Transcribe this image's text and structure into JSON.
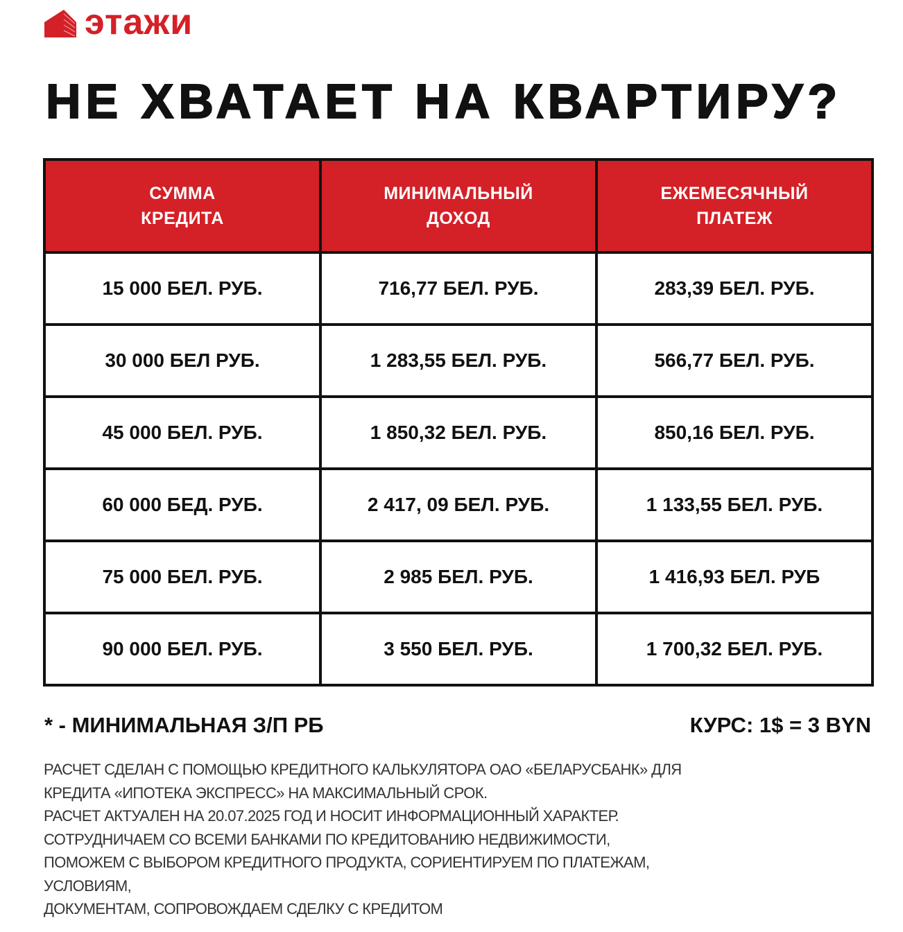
{
  "brand": {
    "name": "этажи",
    "color": "#d42027"
  },
  "title": "НЕ ХВАТАЕТ НА КВАРТИРУ?",
  "table": {
    "headers": [
      [
        "СУММА",
        "КРЕДИТА"
      ],
      [
        "МИНИМАЛЬНЫЙ",
        "ДОХОД"
      ],
      [
        "ЕЖЕМЕСЯЧНЫЙ",
        "ПЛАТЕЖ"
      ]
    ],
    "rows": [
      [
        "15 000 БЕЛ. РУБ.",
        "716,77 БЕЛ. РУБ.",
        "283,39 БЕЛ. РУБ."
      ],
      [
        "30 000 БЕЛ РУБ.",
        "1 283,55 БЕЛ. РУБ.",
        "566,77 БЕЛ. РУБ."
      ],
      [
        "45 000 БЕЛ. РУБ.",
        "1 850,32 БЕЛ. РУБ.",
        "850,16 БЕЛ. РУБ."
      ],
      [
        "60 000 БЕД. РУБ.",
        "2 417, 09 БЕЛ. РУБ.",
        "1 133,55 БЕЛ. РУБ."
      ],
      [
        "75 000 БЕЛ. РУБ.",
        "2 985 БЕЛ. РУБ.",
        "1 416,93 БЕЛ. РУБ"
      ],
      [
        "90 000 БЕЛ. РУБ.",
        "3 550 БЕЛ. РУБ.",
        "1 700,32 БЕЛ. РУБ."
      ]
    ]
  },
  "footnote": "* - МИНИМАЛЬНАЯ З/П РБ",
  "rate": "КУРС: 1$ = 3 BYN",
  "disclaimer": [
    "РАСЧЕТ СДЕЛАН С ПОМОЩЬЮ КРЕДИТНОГО КАЛЬКУЛЯТОРА ОАО «БЕЛАРУСБАНК» ДЛЯ",
    "КРЕДИТА «ИПОТЕКА ЭКСПРЕСС» НА МАКСИМАЛЬНЫЙ СРОК.",
    "РАСЧЕТ АКТУАЛЕН НА 20.07.2025 ГОД И НОСИТ ИНФОРМАЦИОННЫЙ ХАРАКТЕР.",
    "СОТРУДНИЧАЕМ СО ВСЕМИ БАНКАМИ ПО КРЕДИТОВАНИЮ НЕДВИЖИМОСТИ,",
    "ПОМОЖЕМ С ВЫБОРОМ КРЕДИТНОГО ПРОДУКТА, СОРИЕНТИРУЕМ ПО ПЛАТЕЖАМ,",
    "УСЛОВИЯМ,",
    "ДОКУМЕНТАМ, СОПРОВОЖДАЕМ СДЕЛКУ С КРЕДИТОМ"
  ]
}
